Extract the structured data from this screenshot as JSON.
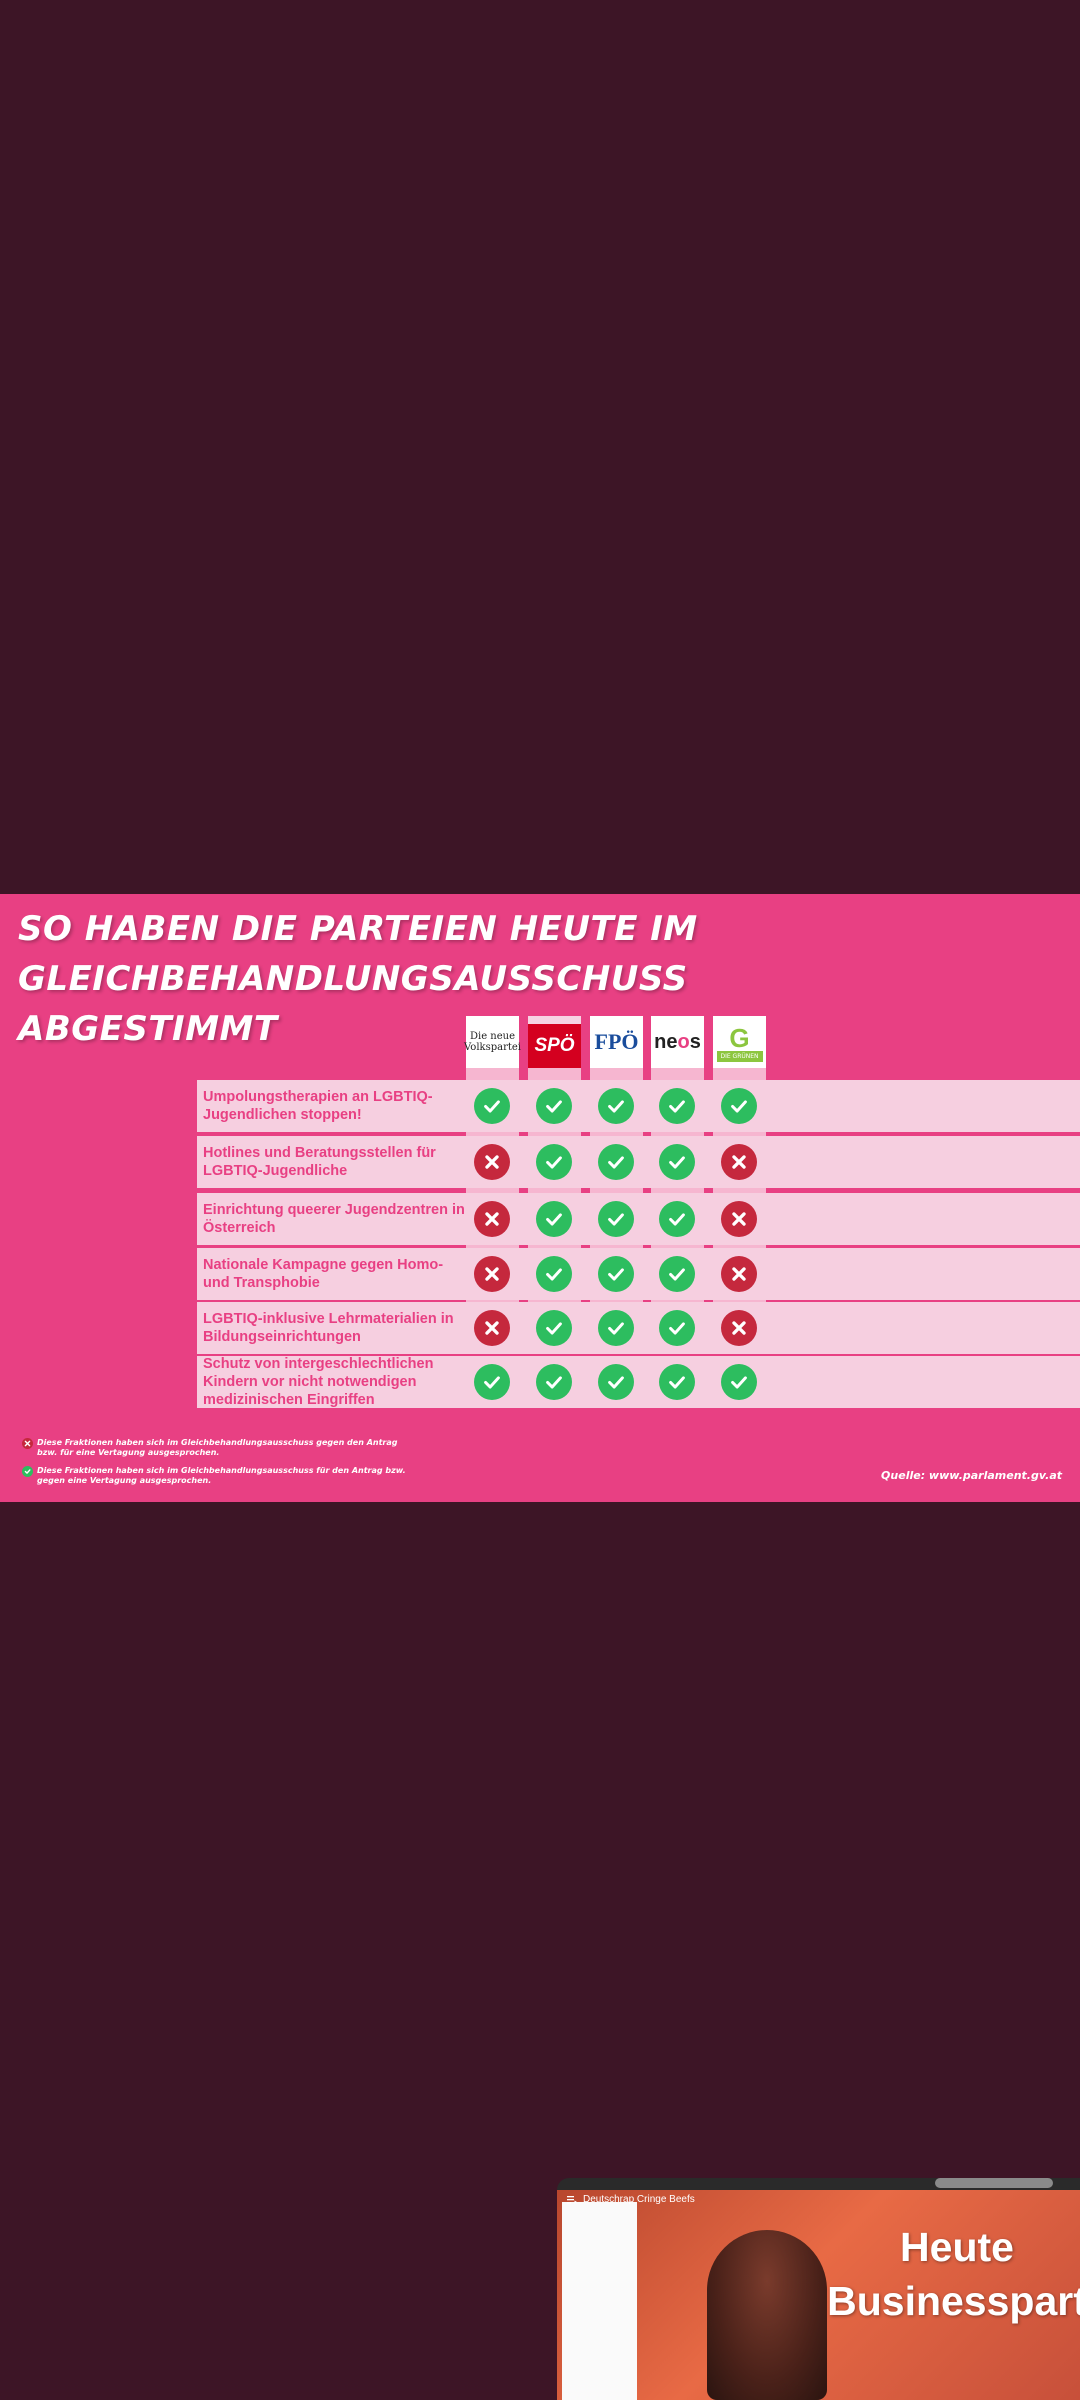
{
  "headline": [
    "SO HABEN DIE PARTEIEN HEUTE IM",
    "GLEICHBEHANDLUNGSAUSSCHUSS",
    "ABGESTIMMT"
  ],
  "parties": [
    {
      "name": "Die neue Volkspartei",
      "logo_text": [
        "Die neue",
        "Volkspartei"
      ]
    },
    {
      "name": "SPÖ",
      "logo_text": [
        "SPÖ"
      ]
    },
    {
      "name": "FPÖ",
      "logo_text": [
        "FPÖ"
      ]
    },
    {
      "name": "NEOS",
      "logo_text": [
        "neos"
      ]
    },
    {
      "name": "Die Grünen",
      "logo_text": [
        "G",
        "DIE GRÜNEN"
      ]
    }
  ],
  "motions": [
    {
      "label": "Umpolungstherapien an LGBTIQ-Jugendlichen stoppen!",
      "votes": [
        "yes",
        "yes",
        "yes",
        "yes",
        "yes"
      ]
    },
    {
      "label": "Hotlines und Beratungsstellen für LGBTIQ-Jugendliche",
      "votes": [
        "no",
        "yes",
        "yes",
        "yes",
        "no"
      ]
    },
    {
      "label": "Einrichtung queerer Jugendzentren in Österreich",
      "votes": [
        "no",
        "yes",
        "yes",
        "yes",
        "no"
      ]
    },
    {
      "label": "Nationale Kampagne gegen Homo- und Transphobie",
      "votes": [
        "no",
        "yes",
        "yes",
        "yes",
        "no"
      ]
    },
    {
      "label": "LGBTIQ-inklusive Lehrmaterialien in Bildungseinrichtungen",
      "votes": [
        "no",
        "yes",
        "yes",
        "yes",
        "no"
      ]
    },
    {
      "label": "Schutz von intergeschlechtlichen Kindern vor nicht notwendigen medizinischen Eingriffen",
      "votes": [
        "yes",
        "yes",
        "yes",
        "yes",
        "yes"
      ]
    }
  ],
  "legend": {
    "no": "Diese Fraktionen haben sich im Gleichbehandlungsausschuss gegen den Antrag bzw. für eine Vertagung ausgesprochen.",
    "yes": "Diese Fraktionen haben sich im Gleichbehandlungsausschuss für den Antrag bzw. gegen eine Vertagung ausgesprochen."
  },
  "source": "Quelle: www.parlament.gv.at",
  "colors": {
    "yes": "#2dbd5f",
    "no": "#c5283d",
    "background": "#e84083",
    "screen": "#3d1526"
  },
  "pip": {
    "channel": "Deutschrap Cringe Beefs",
    "overlay_line1": "Heute",
    "overlay_line2": "Businesspart"
  }
}
